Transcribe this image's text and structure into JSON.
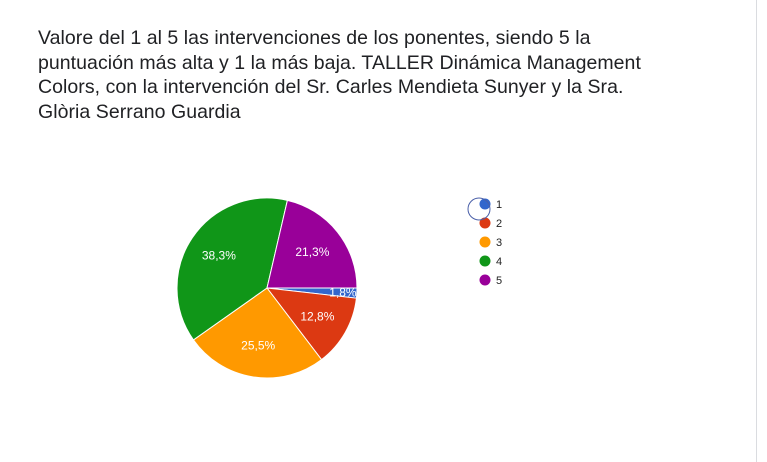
{
  "question": {
    "title": "Valore del 1 al 5 las intervenciones de los ponentes, siendo 5 la puntuación más alta y 1 la más baja. TALLER Dinámica Management Colors, con la intervención del Sr. Carles Mendieta Sunyer y la Sra. Glòria Serrano Guardia"
  },
  "chart_data": {
    "type": "pie",
    "title": "",
    "legend_position": "right",
    "slices": [
      {
        "label": "1",
        "value": 1.8,
        "display": "1,8%",
        "color": "#3366cc"
      },
      {
        "label": "2",
        "value": 12.8,
        "display": "12,8%",
        "color": "#dc3912"
      },
      {
        "label": "3",
        "value": 25.5,
        "display": "25,5%",
        "color": "#ff9900"
      },
      {
        "label": "4",
        "value": 38.3,
        "display": "38,3%",
        "color": "#109618"
      },
      {
        "label": "5",
        "value": 21.3,
        "display": "21,3%",
        "color": "#990099"
      }
    ]
  }
}
